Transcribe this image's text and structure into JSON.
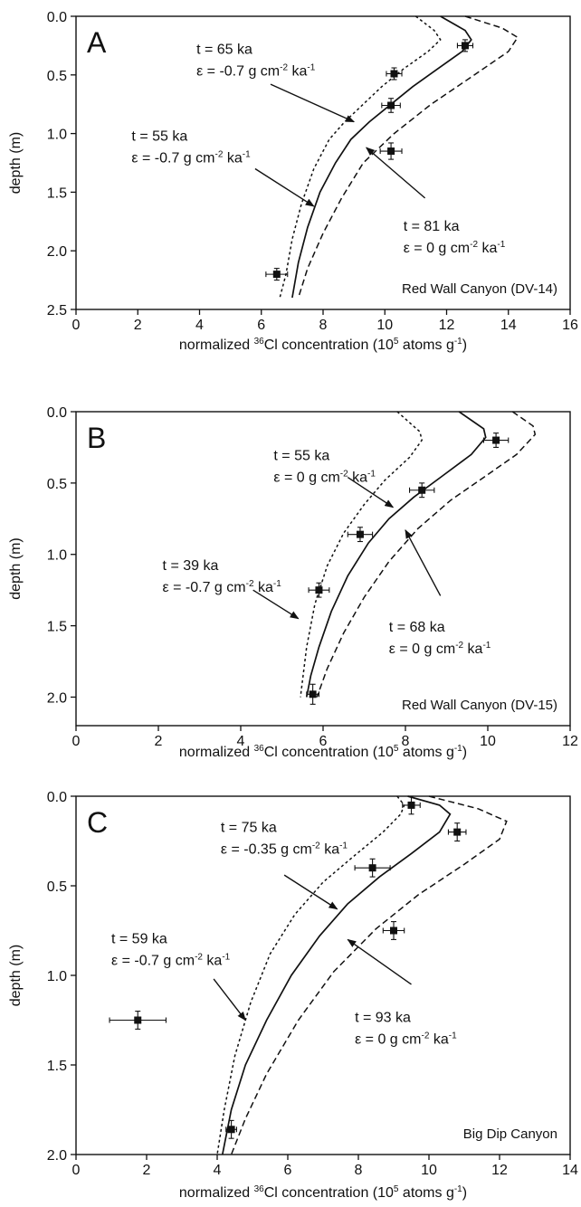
{
  "chart_data": [
    {
      "panel": "A",
      "type": "line",
      "location": "Red Wall Canyon (DV-14)",
      "xlabel_pre": "normalized ",
      "xlabel_sup1": "36",
      "xlabel_mid": "Cl concentration (10",
      "xlabel_sup2": "5",
      "xlabel_post": " atoms g",
      "xlabel_sup3": "-1",
      "xlabel_end": ")",
      "ylabel": "depth (m)",
      "xlim": [
        0,
        16
      ],
      "ylim": [
        0,
        2.5
      ],
      "xticks": [
        "0",
        "2",
        "4",
        "6",
        "8",
        "10",
        "12",
        "14",
        "16"
      ],
      "yticks": [
        "0.0",
        "0.5",
        "1.0",
        "1.5",
        "2.0",
        "2.5"
      ],
      "ytick_values": [
        0,
        0.5,
        1.0,
        1.5,
        2.0,
        2.5
      ],
      "series": [
        {
          "style": "solid",
          "points": [
            [
              11.8,
              0.0
            ],
            [
              12.6,
              0.12
            ],
            [
              12.8,
              0.2
            ],
            [
              12.5,
              0.3
            ],
            [
              11.7,
              0.45
            ],
            [
              10.9,
              0.6
            ],
            [
              10.2,
              0.75
            ],
            [
              9.5,
              0.9
            ],
            [
              8.9,
              1.05
            ],
            [
              8.4,
              1.25
            ],
            [
              7.9,
              1.5
            ],
            [
              7.5,
              1.8
            ],
            [
              7.2,
              2.1
            ],
            [
              7.0,
              2.4
            ]
          ]
        },
        {
          "style": "dotted",
          "points": [
            [
              11.0,
              0.0
            ],
            [
              11.6,
              0.12
            ],
            [
              11.8,
              0.2
            ],
            [
              11.4,
              0.3
            ],
            [
              10.6,
              0.45
            ],
            [
              9.9,
              0.6
            ],
            [
              9.3,
              0.75
            ],
            [
              8.7,
              0.9
            ],
            [
              8.2,
              1.05
            ],
            [
              7.7,
              1.3
            ],
            [
              7.3,
              1.6
            ],
            [
              7.0,
              1.9
            ],
            [
              6.8,
              2.2
            ],
            [
              6.6,
              2.4
            ]
          ]
        },
        {
          "style": "dashed",
          "points": [
            [
              12.6,
              0.0
            ],
            [
              13.8,
              0.1
            ],
            [
              14.3,
              0.18
            ],
            [
              14.0,
              0.3
            ],
            [
              12.9,
              0.5
            ],
            [
              11.5,
              0.75
            ],
            [
              10.3,
              1.0
            ],
            [
              9.3,
              1.25
            ],
            [
              8.6,
              1.55
            ],
            [
              8.0,
              1.85
            ],
            [
              7.5,
              2.15
            ],
            [
              7.2,
              2.4
            ]
          ]
        }
      ],
      "samples": [
        {
          "x": 12.6,
          "y": 0.25,
          "xerr": 0.25,
          "yerr": 0.05
        },
        {
          "x": 10.3,
          "y": 0.49,
          "xerr": 0.25,
          "yerr": 0.05
        },
        {
          "x": 10.2,
          "y": 0.76,
          "xerr": 0.3,
          "yerr": 0.06
        },
        {
          "x": 10.2,
          "y": 1.15,
          "xerr": 0.35,
          "yerr": 0.07
        },
        {
          "x": 6.5,
          "y": 2.2,
          "xerr": 0.35,
          "yerr": 0.05
        }
      ],
      "annotations": [
        {
          "id": "ann-a1",
          "line1": "t = 65 ka",
          "eps_pre": "ε = -0.7 g cm",
          "sup1": "-2",
          "eps_mid": " ka",
          "sup2": "-1",
          "tx": 3.9,
          "ty": 0.32,
          "arrow": [
            [
              6.3,
              0.58
            ],
            [
              9.0,
              0.9
            ]
          ]
        },
        {
          "id": "ann-a2",
          "line1": "t = 55 ka",
          "eps_pre": "ε = -0.7 g cm",
          "sup1": "-2",
          "eps_mid": " ka",
          "sup2": "-1",
          "tx": 1.8,
          "ty": 1.06,
          "arrow": [
            [
              5.8,
              1.3
            ],
            [
              7.7,
              1.62
            ]
          ]
        },
        {
          "id": "ann-a3",
          "line1": "t = 81 ka",
          "eps_pre": "ε = 0 g cm",
          "sup1": "-2",
          "eps_mid": " ka",
          "sup2": "-1",
          "tx": 10.6,
          "ty": 1.83,
          "arrow": [
            [
              11.3,
              1.55
            ],
            [
              9.4,
              1.12
            ]
          ]
        }
      ]
    },
    {
      "panel": "B",
      "type": "line",
      "location": "Red Wall Canyon (DV-15)",
      "xlabel_pre": "normalized ",
      "xlabel_sup1": "36",
      "xlabel_mid": "Cl concentration (10",
      "xlabel_sup2": "5",
      "xlabel_post": " atoms g",
      "xlabel_sup3": "-1",
      "xlabel_end": ")",
      "ylabel": "depth (m)",
      "xlim": [
        0,
        12
      ],
      "ylim": [
        0,
        2.2
      ],
      "xticks": [
        "0",
        "2",
        "4",
        "6",
        "8",
        "10",
        "12"
      ],
      "yticks": [
        "0.0",
        "0.5",
        "1.0",
        "1.5",
        "2.0"
      ],
      "ytick_values": [
        0,
        0.5,
        1.0,
        1.5,
        2.0
      ],
      "series": [
        {
          "style": "solid",
          "points": [
            [
              9.3,
              0.0
            ],
            [
              9.9,
              0.12
            ],
            [
              9.95,
              0.18
            ],
            [
              9.6,
              0.3
            ],
            [
              8.9,
              0.45
            ],
            [
              8.2,
              0.6
            ],
            [
              7.6,
              0.75
            ],
            [
              7.1,
              0.92
            ],
            [
              6.6,
              1.15
            ],
            [
              6.2,
              1.4
            ],
            [
              5.9,
              1.65
            ],
            [
              5.7,
              1.85
            ],
            [
              5.6,
              2.0
            ]
          ]
        },
        {
          "style": "dotted",
          "points": [
            [
              7.8,
              0.0
            ],
            [
              8.35,
              0.14
            ],
            [
              8.4,
              0.2
            ],
            [
              8.1,
              0.32
            ],
            [
              7.5,
              0.48
            ],
            [
              7.0,
              0.65
            ],
            [
              6.5,
              0.85
            ],
            [
              6.1,
              1.08
            ],
            [
              5.8,
              1.35
            ],
            [
              5.6,
              1.65
            ],
            [
              5.45,
              2.0
            ]
          ]
        },
        {
          "style": "dashed",
          "points": [
            [
              10.6,
              0.0
            ],
            [
              11.1,
              0.1
            ],
            [
              11.15,
              0.16
            ],
            [
              10.7,
              0.3
            ],
            [
              9.9,
              0.46
            ],
            [
              9.1,
              0.62
            ],
            [
              8.3,
              0.82
            ],
            [
              7.6,
              1.05
            ],
            [
              7.0,
              1.3
            ],
            [
              6.5,
              1.55
            ],
            [
              6.1,
              1.8
            ],
            [
              5.85,
              2.0
            ]
          ]
        }
      ],
      "samples": [
        {
          "x": 10.2,
          "y": 0.2,
          "xerr": 0.3,
          "yerr": 0.05
        },
        {
          "x": 8.4,
          "y": 0.55,
          "xerr": 0.3,
          "yerr": 0.05
        },
        {
          "x": 6.9,
          "y": 0.86,
          "xerr": 0.3,
          "yerr": 0.05
        },
        {
          "x": 5.9,
          "y": 1.25,
          "xerr": 0.25,
          "yerr": 0.05
        },
        {
          "x": 5.75,
          "y": 1.98,
          "xerr": 0.15,
          "yerr": 0.07
        }
      ],
      "annotations": [
        {
          "id": "ann-b1",
          "line1": "t = 55 ka",
          "eps_pre": "ε = 0 g cm",
          "sup1": "-2",
          "eps_mid": " ka",
          "sup2": "-1",
          "tx": 4.8,
          "ty": 0.34,
          "arrow": [
            [
              6.6,
              0.46
            ],
            [
              7.7,
              0.67
            ]
          ]
        },
        {
          "id": "ann-b2",
          "line1": "t = 39 ka",
          "eps_pre": "ε = -0.7 g cm",
          "sup1": "-2",
          "eps_mid": " ka",
          "sup2": "-1",
          "tx": 2.1,
          "ty": 1.11,
          "arrow": [
            [
              4.3,
              1.25
            ],
            [
              5.4,
              1.45
            ]
          ]
        },
        {
          "id": "ann-b3",
          "line1": "t = 68 ka",
          "eps_pre": "ε = 0 g cm",
          "sup1": "-2",
          "eps_mid": " ka",
          "sup2": "-1",
          "tx": 7.6,
          "ty": 1.54,
          "arrow": [
            [
              8.85,
              1.29
            ],
            [
              8.0,
              0.83
            ]
          ]
        }
      ]
    },
    {
      "panel": "C",
      "type": "line",
      "location": "Big Dip Canyon",
      "xlabel_pre": "normalized ",
      "xlabel_sup1": "36",
      "xlabel_mid": "Cl concentration (10",
      "xlabel_sup2": "5",
      "xlabel_post": " atoms g",
      "xlabel_sup3": "-1",
      "xlabel_end": ")",
      "ylabel": "depth (m)",
      "xlim": [
        0,
        14
      ],
      "ylim": [
        0,
        2.0
      ],
      "xticks": [
        "0",
        "2",
        "4",
        "6",
        "8",
        "10",
        "12",
        "14"
      ],
      "yticks": [
        "0.0",
        "0.5",
        "1.0",
        "1.5",
        "2.0"
      ],
      "ytick_values": [
        0,
        0.5,
        1.0,
        1.5,
        2.0
      ],
      "series": [
        {
          "style": "solid",
          "points": [
            [
              9.4,
              0.0
            ],
            [
              10.3,
              0.05
            ],
            [
              10.6,
              0.1
            ],
            [
              10.3,
              0.2
            ],
            [
              9.5,
              0.32
            ],
            [
              8.6,
              0.45
            ],
            [
              7.7,
              0.6
            ],
            [
              6.9,
              0.78
            ],
            [
              6.1,
              1.0
            ],
            [
              5.4,
              1.25
            ],
            [
              4.8,
              1.5
            ],
            [
              4.4,
              1.75
            ],
            [
              4.15,
              2.0
            ]
          ]
        },
        {
          "style": "dotted",
          "points": [
            [
              9.1,
              0.0
            ],
            [
              9.3,
              0.05
            ],
            [
              9.2,
              0.1
            ],
            [
              8.7,
              0.2
            ],
            [
              7.9,
              0.33
            ],
            [
              7.0,
              0.48
            ],
            [
              6.2,
              0.66
            ],
            [
              5.5,
              0.88
            ],
            [
              4.95,
              1.15
            ],
            [
              4.5,
              1.45
            ],
            [
              4.2,
              1.75
            ],
            [
              4.0,
              2.0
            ]
          ]
        },
        {
          "style": "dashed",
          "points": [
            [
              10.0,
              0.0
            ],
            [
              11.4,
              0.07
            ],
            [
              12.2,
              0.14
            ],
            [
              12.0,
              0.24
            ],
            [
              11.0,
              0.38
            ],
            [
              9.7,
              0.55
            ],
            [
              8.5,
              0.74
            ],
            [
              7.3,
              0.98
            ],
            [
              6.3,
              1.25
            ],
            [
              5.4,
              1.55
            ],
            [
              4.8,
              1.8
            ],
            [
              4.4,
              2.0
            ]
          ]
        }
      ],
      "samples": [
        {
          "x": 9.5,
          "y": 0.05,
          "xerr": 0.25,
          "yerr": 0.05
        },
        {
          "x": 10.8,
          "y": 0.2,
          "xerr": 0.25,
          "yerr": 0.05
        },
        {
          "x": 8.4,
          "y": 0.4,
          "xerr": 0.5,
          "yerr": 0.05
        },
        {
          "x": 9.0,
          "y": 0.75,
          "xerr": 0.3,
          "yerr": 0.05
        },
        {
          "x": 1.75,
          "y": 1.25,
          "xerr": 0.8,
          "yerr": 0.05
        },
        {
          "x": 4.4,
          "y": 1.86,
          "xerr": 0.15,
          "yerr": 0.05
        }
      ],
      "annotations": [
        {
          "id": "ann-c1",
          "line1": "t = 75 ka",
          "eps_pre": "ε = -0.35 g cm",
          "sup1": "-2",
          "eps_mid": " ka",
          "sup2": "-1",
          "tx": 4.1,
          "ty": 0.2,
          "arrow": [
            [
              5.9,
              0.44
            ],
            [
              7.4,
              0.63
            ]
          ]
        },
        {
          "id": "ann-c2",
          "line1": "t = 59 ka",
          "eps_pre": "ε = -0.7 g cm",
          "sup1": "-2",
          "eps_mid": " ka",
          "sup2": "-1",
          "tx": 1.0,
          "ty": 0.82,
          "arrow": [
            [
              3.9,
              1.02
            ],
            [
              4.8,
              1.25
            ]
          ]
        },
        {
          "id": "ann-c3",
          "line1": "t = 93 ka",
          "eps_pre": "ε = 0 g cm",
          "sup1": "-2",
          "eps_mid": " ka",
          "sup2": "-1",
          "tx": 7.9,
          "ty": 1.26,
          "arrow": [
            [
              9.5,
              1.05
            ],
            [
              7.7,
              0.8
            ]
          ]
        }
      ]
    }
  ]
}
